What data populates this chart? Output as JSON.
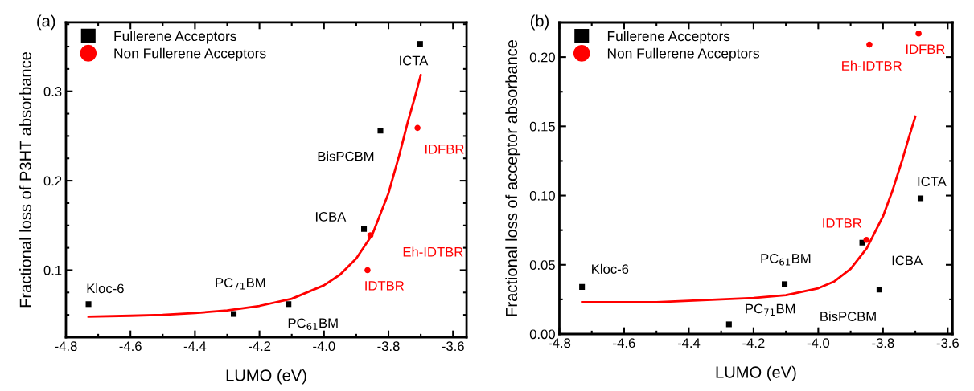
{
  "chart_data": [
    {
      "type": "scatter",
      "title": "(a)",
      "xlabel": "LUMO (eV)",
      "ylabel": "Fractional loss of P3HT absorbance",
      "xlim": [
        -4.8,
        -3.558
      ],
      "xticks": [
        {
          "value": -4.8,
          "label": "-4.8"
        },
        {
          "value": -4.6,
          "label": "-4.6"
        },
        {
          "value": -4.4,
          "label": "-4.4"
        },
        {
          "value": -4.2,
          "label": "-4.2"
        },
        {
          "value": -4.0,
          "label": "-4.0"
        },
        {
          "value": -3.8,
          "label": "-3.8"
        },
        {
          "value": -3.6,
          "label": "-3.6"
        }
      ],
      "ylim": [
        0.025,
        0.377
      ],
      "yticks": [
        0.1,
        0.2,
        0.3
      ],
      "legend": "top left",
      "grid": false,
      "series": [
        {
          "name": "Fullerene Acceptors",
          "marker": "square",
          "color": "#000000",
          "x": [
            -4.73,
            -4.28,
            -4.11,
            -3.876,
            -3.825,
            -3.702
          ],
          "values": [
            0.062,
            0.051,
            0.062,
            0.146,
            0.256,
            0.353
          ]
        },
        {
          "name": "Non Fullerene Acceptors",
          "marker": "circle",
          "color": "#ff0000",
          "x": [
            -3.865,
            -3.856,
            -3.71
          ],
          "values": [
            0.1,
            0.139,
            0.259
          ]
        },
        {
          "type": "line",
          "color": "#ff0000",
          "line_style": "solid",
          "x": [
            -4.73,
            -4.6,
            -4.5,
            -4.4,
            -4.3,
            -4.2,
            -4.1,
            -4.0,
            -3.95,
            -3.9,
            -3.85,
            -3.8,
            -3.767,
            -3.74,
            -3.72,
            -3.7
          ],
          "values": [
            0.048,
            0.049,
            0.05,
            0.052,
            0.055,
            0.06,
            0.068,
            0.083,
            0.095,
            0.113,
            0.14,
            0.186,
            0.228,
            0.266,
            0.291,
            0.318
          ]
        }
      ],
      "annotations": [
        {
          "text": "ICTA",
          "x": -3.702,
          "y": 0.353
        },
        {
          "text": "BisPCBM",
          "x": -3.825,
          "y": 0.256
        },
        {
          "text": "IDFBR",
          "x": -3.71,
          "y": 0.259
        },
        {
          "text": "ICBA",
          "x": -3.876,
          "y": 0.146
        },
        {
          "text": "Eh-IDTBR",
          "x": -3.856,
          "y": 0.139
        },
        {
          "text": "IDTBR",
          "x": -3.865,
          "y": 0.1
        },
        {
          "text": "Kloc-6",
          "x": -4.73,
          "y": 0.062
        },
        {
          "text": "PC$_{71}$BM",
          "x": -4.28,
          "y": 0.051
        },
        {
          "text": "PC$_{61}$BM",
          "x": -4.11,
          "y": 0.062
        }
      ]
    },
    {
      "type": "scatter",
      "title": "(b)",
      "xlabel": "LUMO (eV)",
      "ylabel": "Fractional loss of acceptor absorbance",
      "xlim": [
        -4.8,
        -3.585
      ],
      "xticks": [
        {
          "value": -4.8,
          "label": "-4.8"
        },
        {
          "value": -4.6,
          "label": "-4.6"
        },
        {
          "value": -4.4,
          "label": "-4.4"
        },
        {
          "value": -4.2,
          "label": "-4.2"
        },
        {
          "value": -4.0,
          "label": "-4.0"
        },
        {
          "value": -3.8,
          "label": "-3.8"
        },
        {
          "value": -3.6,
          "label": "-3.6"
        }
      ],
      "ylim": [
        0.0,
        0.225
      ],
      "yticks": [
        {
          "value": 0.0,
          "label": "0.00"
        },
        {
          "value": 0.05,
          "label": "0.05"
        },
        {
          "value": 0.1,
          "label": "0.10"
        },
        {
          "value": 0.15,
          "label": "0.15"
        },
        {
          "value": 0.2,
          "label": "0.20"
        }
      ],
      "legend": "top left",
      "grid": false,
      "series": [
        {
          "name": "Fullerene Acceptors",
          "marker": "square",
          "color": "#000000",
          "x": [
            -4.73,
            -4.276,
            -4.104,
            -3.864,
            -3.811,
            -3.684
          ],
          "values": [
            0.034,
            0.007,
            0.036,
            0.066,
            0.032,
            0.098
          ]
        },
        {
          "name": "Non Fullerene Acceptors",
          "marker": "circle",
          "color": "#ff0000",
          "x": [
            -3.851,
            -3.842,
            -3.69
          ],
          "values": [
            0.068,
            0.209,
            0.217
          ]
        },
        {
          "type": "line",
          "color": "#ff0000",
          "line_style": "solid",
          "x": [
            -4.73,
            -4.6,
            -4.5,
            -4.4,
            -4.3,
            -4.2,
            -4.1,
            -4.0,
            -3.95,
            -3.9,
            -3.85,
            -3.8,
            -3.77,
            -3.74,
            -3.72,
            -3.7
          ],
          "values": [
            0.023,
            0.023,
            0.023,
            0.024,
            0.025,
            0.026,
            0.028,
            0.033,
            0.038,
            0.047,
            0.062,
            0.085,
            0.104,
            0.126,
            0.142,
            0.157
          ]
        }
      ],
      "annotations": [
        {
          "text": "Kloc-6",
          "x": -4.73,
          "y": 0.034
        },
        {
          "text": "PC$_{71}$BM",
          "x": -4.276,
          "y": 0.007
        },
        {
          "text": "PC$_{61}$BM",
          "x": -4.104,
          "y": 0.036
        },
        {
          "text": "ICBA",
          "x": -3.864,
          "y": 0.066
        },
        {
          "text": "IDTBR",
          "x": -3.851,
          "y": 0.068
        },
        {
          "text": "BisPCBM",
          "x": -3.811,
          "y": 0.032
        },
        {
          "text": "ICTA",
          "x": -3.684,
          "y": 0.098
        },
        {
          "text": "Eh-IDTBR",
          "x": -3.842,
          "y": 0.209
        },
        {
          "text": "IDFBR",
          "x": -3.69,
          "y": 0.217
        }
      ]
    }
  ]
}
